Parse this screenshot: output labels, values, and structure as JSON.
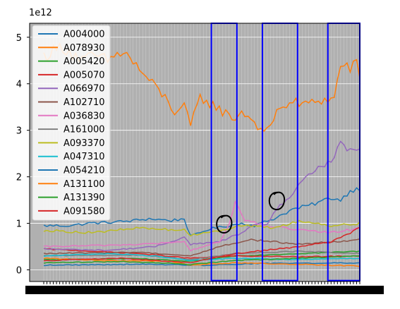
{
  "chart_data": {
    "type": "line",
    "title": "",
    "xlabel": "",
    "ylabel": "",
    "y_offset_label": "1e12",
    "ylim": [
      -0.25,
      5.3
    ],
    "yticks": [
      0,
      1,
      2,
      3,
      4,
      5
    ],
    "grid": true,
    "plot_background": "#b0b0b0",
    "legend_position": "upper-left",
    "n_points": 100,
    "series": [
      {
        "name": "A004000",
        "color": "#1f77b4",
        "anchors": [
          [
            0,
            0.95
          ],
          [
            8,
            0.95
          ],
          [
            14,
            1.0
          ],
          [
            20,
            1.02
          ],
          [
            27,
            1.05
          ],
          [
            33,
            1.1
          ],
          [
            40,
            1.06
          ],
          [
            44,
            1.1
          ],
          [
            46,
            0.72
          ],
          [
            52,
            0.88
          ],
          [
            58,
            0.95
          ],
          [
            62,
            1.0
          ],
          [
            66,
            0.95
          ],
          [
            72,
            1.1
          ],
          [
            78,
            1.3
          ],
          [
            84,
            1.4
          ],
          [
            90,
            1.55
          ],
          [
            93,
            1.5
          ],
          [
            96,
            1.7
          ],
          [
            99,
            1.75
          ]
        ]
      },
      {
        "name": "A078930",
        "color": "#ff7f0e",
        "anchors": [
          [
            0,
            4.6
          ],
          [
            6,
            4.8
          ],
          [
            10,
            4.6
          ],
          [
            12,
            4.5
          ],
          [
            16,
            4.6
          ],
          [
            20,
            4.5
          ],
          [
            25,
            4.7
          ],
          [
            30,
            4.3
          ],
          [
            34,
            4.0
          ],
          [
            38,
            3.7
          ],
          [
            41,
            3.4
          ],
          [
            44,
            3.5
          ],
          [
            46,
            3.1
          ],
          [
            49,
            3.7
          ],
          [
            53,
            3.55
          ],
          [
            56,
            3.4
          ],
          [
            60,
            3.25
          ],
          [
            62,
            3.4
          ],
          [
            65,
            3.25
          ],
          [
            67,
            3.1
          ],
          [
            69,
            2.9
          ],
          [
            70,
            3.0
          ],
          [
            74,
            3.5
          ],
          [
            78,
            3.6
          ],
          [
            82,
            3.55
          ],
          [
            86,
            3.65
          ],
          [
            90,
            3.65
          ],
          [
            91,
            3.7
          ],
          [
            93,
            4.4
          ],
          [
            96,
            4.35
          ],
          [
            98,
            4.4
          ],
          [
            99,
            4.15
          ]
        ]
      },
      {
        "name": "A005420",
        "color": "#2ca02c",
        "anchors": [
          [
            0,
            0.22
          ],
          [
            30,
            0.24
          ],
          [
            46,
            0.18
          ],
          [
            60,
            0.3
          ],
          [
            80,
            0.35
          ],
          [
            99,
            0.4
          ]
        ]
      },
      {
        "name": "A005070",
        "color": "#d62728",
        "anchors": [
          [
            0,
            0.45
          ],
          [
            15,
            0.4
          ],
          [
            30,
            0.35
          ],
          [
            46,
            0.25
          ],
          [
            60,
            0.3
          ],
          [
            80,
            0.28
          ],
          [
            99,
            0.3
          ]
        ]
      },
      {
        "name": "A066970",
        "color": "#9467bd",
        "anchors": [
          [
            0,
            0.45
          ],
          [
            20,
            0.42
          ],
          [
            35,
            0.5
          ],
          [
            44,
            0.7
          ],
          [
            46,
            0.55
          ],
          [
            55,
            0.6
          ],
          [
            62,
            0.8
          ],
          [
            66,
            0.95
          ],
          [
            70,
            1.0
          ],
          [
            74,
            1.4
          ],
          [
            78,
            1.6
          ],
          [
            82,
            2.0
          ],
          [
            86,
            2.2
          ],
          [
            90,
            2.3
          ],
          [
            93,
            2.7
          ],
          [
            96,
            2.55
          ],
          [
            99,
            2.6
          ]
        ]
      },
      {
        "name": "A102710",
        "color": "#8c564b",
        "anchors": [
          [
            0,
            0.35
          ],
          [
            30,
            0.38
          ],
          [
            46,
            0.3
          ],
          [
            55,
            0.5
          ],
          [
            65,
            0.65
          ],
          [
            80,
            0.55
          ],
          [
            99,
            0.65
          ]
        ]
      },
      {
        "name": "A036830",
        "color": "#e377c2",
        "anchors": [
          [
            0,
            0.5
          ],
          [
            15,
            0.52
          ],
          [
            30,
            0.55
          ],
          [
            44,
            0.6
          ],
          [
            46,
            0.42
          ],
          [
            55,
            0.6
          ],
          [
            58,
            0.95
          ],
          [
            60,
            1.5
          ],
          [
            63,
            1.05
          ],
          [
            70,
            0.95
          ],
          [
            80,
            0.85
          ],
          [
            90,
            0.8
          ],
          [
            99,
            0.9
          ]
        ]
      },
      {
        "name": "A161000",
        "color": "#7f7f7f",
        "anchors": [
          [
            0,
            0.3
          ],
          [
            30,
            0.32
          ],
          [
            46,
            0.22
          ],
          [
            60,
            0.35
          ],
          [
            80,
            0.4
          ],
          [
            99,
            0.35
          ]
        ]
      },
      {
        "name": "A093370",
        "color": "#bcbd22",
        "anchors": [
          [
            0,
            0.85
          ],
          [
            15,
            0.8
          ],
          [
            30,
            0.9
          ],
          [
            44,
            0.85
          ],
          [
            46,
            0.75
          ],
          [
            55,
            0.85
          ],
          [
            62,
            0.95
          ],
          [
            72,
            0.9
          ],
          [
            80,
            1.05
          ],
          [
            90,
            0.95
          ],
          [
            99,
            1.0
          ]
        ]
      },
      {
        "name": "A047310",
        "color": "#17becf",
        "anchors": [
          [
            0,
            0.3
          ],
          [
            20,
            0.35
          ],
          [
            35,
            0.3
          ],
          [
            46,
            0.2
          ],
          [
            60,
            0.25
          ],
          [
            80,
            0.22
          ],
          [
            99,
            0.25
          ]
        ]
      },
      {
        "name": "A054210",
        "color": "#1f77b4",
        "anchors": [
          [
            0,
            0.1
          ],
          [
            30,
            0.12
          ],
          [
            50,
            0.1
          ],
          [
            70,
            0.14
          ],
          [
            99,
            0.15
          ]
        ]
      },
      {
        "name": "A131100",
        "color": "#ff7f0e",
        "anchors": [
          [
            0,
            0.25
          ],
          [
            20,
            0.2
          ],
          [
            40,
            0.18
          ],
          [
            46,
            0.1
          ],
          [
            60,
            0.15
          ],
          [
            80,
            0.12
          ],
          [
            99,
            0.08
          ]
        ]
      },
      {
        "name": "A131390",
        "color": "#2ca02c",
        "anchors": [
          [
            0,
            0.15
          ],
          [
            25,
            0.18
          ],
          [
            46,
            0.12
          ],
          [
            60,
            0.2
          ],
          [
            80,
            0.25
          ],
          [
            99,
            0.3
          ]
        ]
      },
      {
        "name": "A091580",
        "color": "#d62728",
        "anchors": [
          [
            0,
            0.2
          ],
          [
            25,
            0.25
          ],
          [
            46,
            0.15
          ],
          [
            60,
            0.35
          ],
          [
            80,
            0.5
          ],
          [
            90,
            0.6
          ],
          [
            96,
            0.8
          ],
          [
            99,
            0.9
          ]
        ]
      }
    ],
    "highlight_boxes": [
      {
        "x_start": 52.5,
        "x_end": 60.5,
        "y_top": 5.3,
        "y_bottom": -0.23
      },
      {
        "x_start": 68.5,
        "x_end": 79.5,
        "y_top": 5.3,
        "y_bottom": -0.23
      },
      {
        "x_start": 89,
        "x_end": 99,
        "y_top": 5.3,
        "y_bottom": -0.23
      }
    ],
    "annotation_circles": [
      {
        "x": 56.5,
        "y": 0.98
      },
      {
        "x": 73,
        "y": 1.48
      }
    ]
  }
}
